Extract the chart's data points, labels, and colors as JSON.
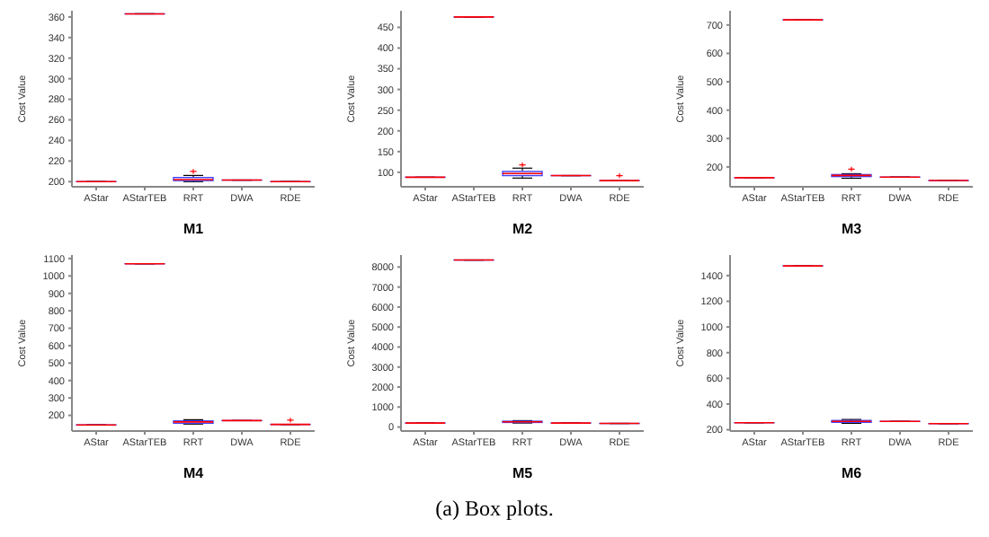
{
  "chart_data": [
    {
      "type": "box",
      "xlabel": "M1",
      "ylabel": "Cost Value",
      "color": "#4040ff",
      "categories": [
        "AStar",
        "AStarTEB",
        "RRT",
        "DWA",
        "RDE"
      ],
      "ylim": [
        195,
        366
      ],
      "yticks": [
        200,
        220,
        240,
        260,
        280,
        300,
        320,
        340,
        360
      ],
      "boxes": [
        {
          "low": 200,
          "q1": 200,
          "median": 200,
          "q3": 200,
          "high": 200
        },
        {
          "low": 363,
          "q1": 363,
          "median": 363,
          "q3": 363,
          "high": 363
        },
        {
          "low": 200,
          "q1": 201,
          "median": 202,
          "q3": 204,
          "high": 206,
          "outliers": [
            210
          ]
        },
        {
          "low": 201.5,
          "q1": 201.5,
          "median": 201.5,
          "q3": 201.5,
          "high": 201.5
        },
        {
          "low": 200,
          "q1": 200,
          "median": 200,
          "q3": 200,
          "high": 200
        }
      ]
    },
    {
      "type": "box",
      "xlabel": "M2",
      "ylabel": "Cost Value",
      "color": "#4040ff",
      "categories": [
        "AStar",
        "AStarTEB",
        "RRT",
        "DWA",
        "RDE"
      ],
      "ylim": [
        65,
        490
      ],
      "yticks": [
        100,
        150,
        200,
        250,
        300,
        350,
        400,
        450
      ],
      "boxes": [
        {
          "low": 88,
          "q1": 88,
          "median": 88,
          "q3": 88,
          "high": 88
        },
        {
          "low": 475,
          "q1": 475,
          "median": 475,
          "q3": 475,
          "high": 475
        },
        {
          "low": 86,
          "q1": 92,
          "median": 97,
          "q3": 102,
          "high": 110,
          "outliers": [
            118
          ]
        },
        {
          "low": 92,
          "q1": 92,
          "median": 92,
          "q3": 92,
          "high": 92
        },
        {
          "low": 80,
          "q1": 80,
          "median": 80,
          "q3": 80,
          "high": 80,
          "outliers": [
            92
          ]
        }
      ]
    },
    {
      "type": "box",
      "xlabel": "M3",
      "ylabel": "Cost Value",
      "color": "#4040ff",
      "categories": [
        "AStar",
        "AStarTEB",
        "RRT",
        "DWA",
        "RDE"
      ],
      "ylim": [
        130,
        750
      ],
      "yticks": [
        200,
        300,
        400,
        500,
        600,
        700
      ],
      "boxes": [
        {
          "low": 162,
          "q1": 162,
          "median": 162,
          "q3": 162,
          "high": 162
        },
        {
          "low": 718,
          "q1": 718,
          "median": 718,
          "q3": 718,
          "high": 718
        },
        {
          "low": 160,
          "q1": 166,
          "median": 170,
          "q3": 173,
          "high": 176,
          "outliers": [
            192
          ]
        },
        {
          "low": 164,
          "q1": 164,
          "median": 164,
          "q3": 164,
          "high": 164
        },
        {
          "low": 152,
          "q1": 152,
          "median": 152,
          "q3": 152,
          "high": 152
        }
      ]
    },
    {
      "type": "box",
      "xlabel": "M4",
      "ylabel": "Cost Value",
      "color": "#4040ff",
      "categories": [
        "AStar",
        "AStarTEB",
        "RRT",
        "DWA",
        "RDE"
      ],
      "ylim": [
        110,
        1120
      ],
      "yticks": [
        200,
        300,
        400,
        500,
        600,
        700,
        800,
        900,
        1000,
        1100
      ],
      "boxes": [
        {
          "low": 145,
          "q1": 145,
          "median": 145,
          "q3": 145,
          "high": 145
        },
        {
          "low": 1070,
          "q1": 1070,
          "median": 1070,
          "q3": 1070,
          "high": 1070
        },
        {
          "low": 150,
          "q1": 155,
          "median": 162,
          "q3": 168,
          "high": 175
        },
        {
          "low": 170,
          "q1": 170,
          "median": 170,
          "q3": 170,
          "high": 170
        },
        {
          "low": 148,
          "q1": 148,
          "median": 148,
          "q3": 148,
          "high": 148,
          "outliers": [
            172
          ]
        }
      ]
    },
    {
      "type": "box",
      "xlabel": "M5",
      "ylabel": "Cost Value",
      "color": "#4040ff",
      "categories": [
        "AStar",
        "AStarTEB",
        "RRT",
        "DWA",
        "RDE"
      ],
      "ylim": [
        -200,
        8600
      ],
      "yticks": [
        0,
        1000,
        2000,
        3000,
        4000,
        5000,
        6000,
        7000,
        8000
      ],
      "boxes": [
        {
          "low": 200,
          "q1": 200,
          "median": 200,
          "q3": 200,
          "high": 200
        },
        {
          "low": 8350,
          "q1": 8350,
          "median": 8350,
          "q3": 8350,
          "high": 8350
        },
        {
          "low": 200,
          "q1": 230,
          "median": 260,
          "q3": 290,
          "high": 320
        },
        {
          "low": 200,
          "q1": 200,
          "median": 200,
          "q3": 200,
          "high": 200
        },
        {
          "low": 180,
          "q1": 180,
          "median": 180,
          "q3": 180,
          "high": 180
        }
      ]
    },
    {
      "type": "box",
      "xlabel": "M6",
      "ylabel": "Cost Value",
      "color": "#4040ff",
      "categories": [
        "AStar",
        "AStarTEB",
        "RRT",
        "DWA",
        "RDE"
      ],
      "ylim": [
        190,
        1560
      ],
      "yticks": [
        200,
        400,
        600,
        800,
        1000,
        1200,
        1400
      ],
      "boxes": [
        {
          "low": 255,
          "q1": 255,
          "median": 255,
          "q3": 255,
          "high": 255
        },
        {
          "low": 1475,
          "q1": 1475,
          "median": 1475,
          "q3": 1475,
          "high": 1475
        },
        {
          "low": 250,
          "q1": 258,
          "median": 265,
          "q3": 272,
          "high": 280
        },
        {
          "low": 265,
          "q1": 265,
          "median": 265,
          "q3": 265,
          "high": 265
        },
        {
          "low": 248,
          "q1": 248,
          "median": 248,
          "q3": 248,
          "high": 248
        }
      ]
    },
    {
      "type": "other",
      "annotations": [
        "(a) Box plots."
      ]
    }
  ]
}
